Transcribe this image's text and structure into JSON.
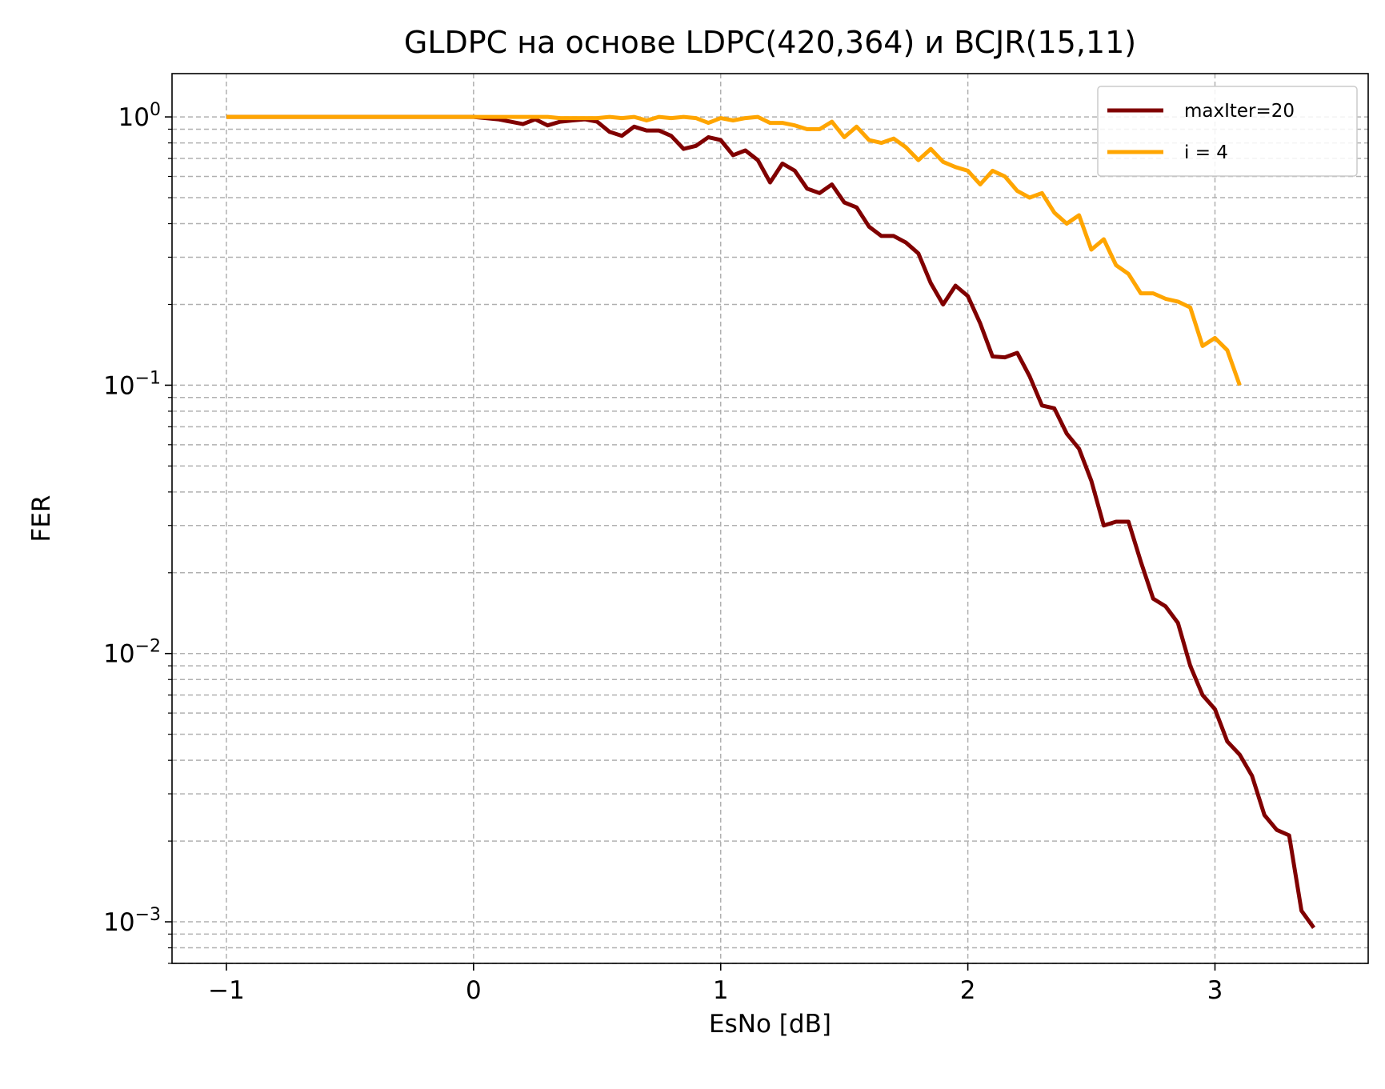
{
  "chart_data": {
    "type": "line",
    "title": "GLDPC на основе LDPC(420,364) и BCJR(15,11)",
    "xlabel": "EsNo [dB]",
    "ylabel": "FER",
    "xlim": [
      -1.22,
      3.62
    ],
    "ylim": [
      0.0007,
      1.45
    ],
    "yscale": "log",
    "grid": true,
    "legend_position": "top-right",
    "x_ticks": [
      {
        "value": -1,
        "label": "−1"
      },
      {
        "value": 0,
        "label": "0"
      },
      {
        "value": 1,
        "label": "1"
      },
      {
        "value": 2,
        "label": "2"
      },
      {
        "value": 3,
        "label": "3"
      }
    ],
    "y_ticks": [
      {
        "value": 1,
        "base": "10",
        "exp": "0"
      },
      {
        "value": 0.1,
        "base": "10",
        "exp": "−1"
      },
      {
        "value": 0.01,
        "base": "10",
        "exp": "−2"
      },
      {
        "value": 0.001,
        "base": "10",
        "exp": "−3"
      }
    ],
    "series": [
      {
        "name": "maxIter=20",
        "color": "#800000",
        "x": [
          -1.0,
          -0.5,
          0.0,
          0.1,
          0.15,
          0.2,
          0.25,
          0.3,
          0.35,
          0.4,
          0.45,
          0.5,
          0.55,
          0.6,
          0.65,
          0.7,
          0.75,
          0.8,
          0.85,
          0.9,
          0.95,
          1.0,
          1.05,
          1.1,
          1.15,
          1.2,
          1.25,
          1.3,
          1.35,
          1.4,
          1.45,
          1.5,
          1.55,
          1.6,
          1.65,
          1.7,
          1.75,
          1.8,
          1.85,
          1.9,
          1.95,
          2.0,
          2.05,
          2.1,
          2.15,
          2.2,
          2.25,
          2.3,
          2.35,
          2.4,
          2.45,
          2.5,
          2.55,
          2.6,
          2.65,
          2.7,
          2.75,
          2.8,
          2.85,
          2.9,
          2.95,
          3.0,
          3.05,
          3.1,
          3.15,
          3.2,
          3.25,
          3.3,
          3.35,
          3.4
        ],
        "y": [
          1.0,
          1.0,
          1.0,
          0.98,
          0.96,
          0.94,
          0.98,
          0.93,
          0.96,
          0.97,
          0.98,
          0.96,
          0.88,
          0.85,
          0.92,
          0.89,
          0.89,
          0.85,
          0.76,
          0.78,
          0.84,
          0.82,
          0.72,
          0.75,
          0.69,
          0.57,
          0.67,
          0.63,
          0.54,
          0.52,
          0.56,
          0.48,
          0.46,
          0.39,
          0.36,
          0.36,
          0.34,
          0.31,
          0.24,
          0.2,
          0.235,
          0.215,
          0.17,
          0.128,
          0.127,
          0.132,
          0.108,
          0.084,
          0.082,
          0.066,
          0.058,
          0.044,
          0.03,
          0.031,
          0.031,
          0.022,
          0.016,
          0.015,
          0.013,
          0.009,
          0.007,
          0.0062,
          0.0047,
          0.0042,
          0.0035,
          0.0025,
          0.0022,
          0.0021,
          0.0011,
          0.00095
        ]
      },
      {
        "name": "i = 4",
        "color": "#ffa500",
        "x": [
          -1.0,
          -0.5,
          0.0,
          0.3,
          0.35,
          0.5,
          0.55,
          0.6,
          0.65,
          0.7,
          0.75,
          0.8,
          0.85,
          0.9,
          0.95,
          1.0,
          1.05,
          1.1,
          1.15,
          1.2,
          1.25,
          1.3,
          1.35,
          1.4,
          1.45,
          1.5,
          1.55,
          1.6,
          1.65,
          1.7,
          1.75,
          1.8,
          1.85,
          1.9,
          1.95,
          2.0,
          2.05,
          2.1,
          2.15,
          2.2,
          2.25,
          2.3,
          2.35,
          2.4,
          2.45,
          2.5,
          2.55,
          2.6,
          2.65,
          2.7,
          2.75,
          2.8,
          2.85,
          2.9,
          2.95,
          3.0,
          3.05,
          3.1
        ],
        "y": [
          1.0,
          1.0,
          1.0,
          1.0,
          0.99,
          0.99,
          1.0,
          0.99,
          1.0,
          0.97,
          1.0,
          0.99,
          1.0,
          0.99,
          0.95,
          0.99,
          0.97,
          0.99,
          1.0,
          0.95,
          0.95,
          0.93,
          0.9,
          0.9,
          0.96,
          0.84,
          0.92,
          0.82,
          0.8,
          0.83,
          0.77,
          0.69,
          0.76,
          0.68,
          0.65,
          0.63,
          0.56,
          0.63,
          0.6,
          0.53,
          0.5,
          0.52,
          0.44,
          0.4,
          0.43,
          0.32,
          0.35,
          0.28,
          0.26,
          0.22,
          0.22,
          0.21,
          0.205,
          0.195,
          0.14,
          0.15,
          0.135,
          0.1
        ]
      }
    ]
  }
}
